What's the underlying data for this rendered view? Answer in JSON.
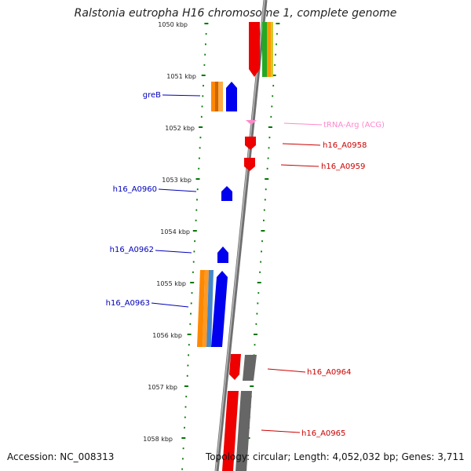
{
  "title": "Ralstonia eutropha H16 chromosome 1, complete genome",
  "accession_text": "Accession: NC_008313",
  "summary_text": "Topology: circular; Length: 4,052,032 bp; Genes: 3,711",
  "colors": {
    "forward_gene": "#0000ff",
    "reverse_gene": "#ff0000",
    "trna": "#ff88cc",
    "cds_orange": "#ff8800",
    "cds_gray": "#808080",
    "tick_green": "#007700",
    "backbone": "#8a8a8a"
  },
  "ruler_labels": [
    "1050 kbp",
    "1051 kbp",
    "1052 kbp",
    "1053 kbp",
    "1054 kbp",
    "1055 kbp",
    "1056 kbp",
    "1057 kbp",
    "1058 kbp"
  ],
  "gene_labels_left": [
    "greB",
    "h16_A0960",
    "h16_A0962",
    "h16_A0963"
  ],
  "gene_labels_right": [
    "tRNA-Arg (ACG)",
    "h16_A0958",
    "h16_A0959",
    "h16_A0964",
    "h16_A0965"
  ]
}
